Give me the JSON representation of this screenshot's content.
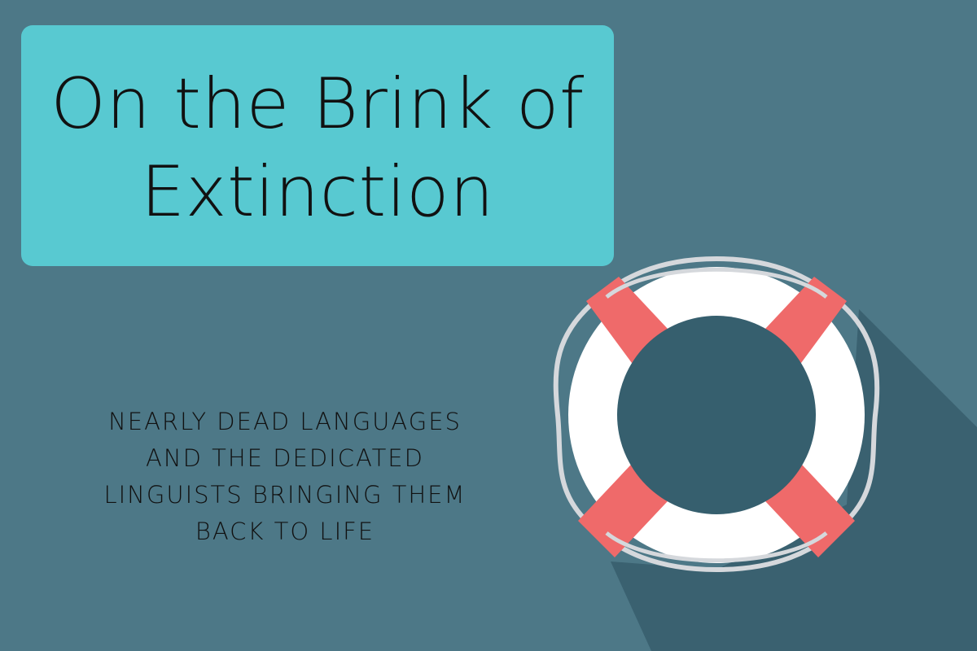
{
  "title": {
    "line1": "On the Brink of",
    "line2": "Extinction"
  },
  "subtitle": {
    "lines": [
      "NEARLY DEAD LANGUAGES",
      "AND THE DEDICATED",
      "LINGUISTS BRINGING THEM",
      "BACK TO LIFE"
    ]
  },
  "colors": {
    "background": "#4d7887",
    "title_box": "#58c9d1",
    "text": "#111111",
    "ring_white": "#ffffff",
    "ring_red": "#ef6a6a",
    "ring_center": "#365f6e",
    "rope": "#d5d8dc",
    "shadow": "#3a6170"
  },
  "icons": {
    "lifebuoy": "lifebuoy-icon"
  }
}
